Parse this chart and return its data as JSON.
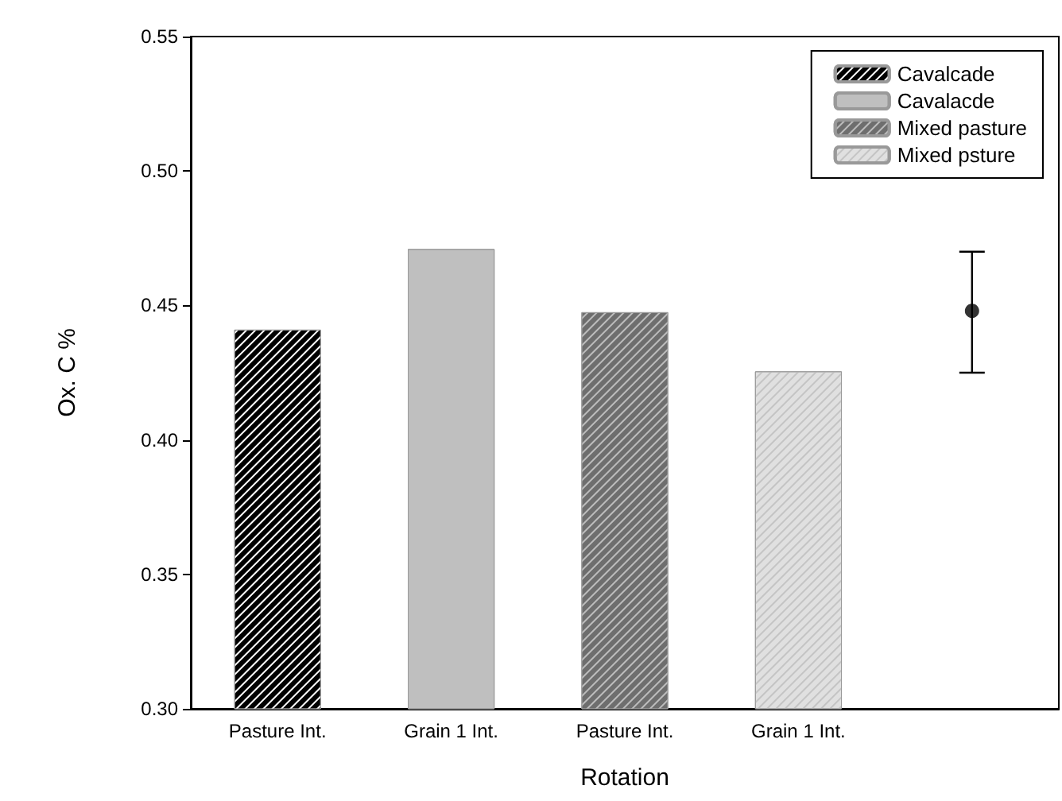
{
  "chart_data": {
    "type": "bar",
    "xlabel": "Rotation",
    "ylabel": "Ox. C %",
    "categories": [
      "Pasture Int.",
      "Grain 1 Int.",
      "Pasture Int.",
      "Grain 1 Int.",
      null
    ],
    "series": [
      {
        "name": "Cavalcade",
        "color": "#000000",
        "values": [
          0.441,
          null,
          null,
          null,
          null
        ]
      },
      {
        "name": "Cavalacde",
        "color": "#bfbfbf",
        "values": [
          null,
          0.471,
          null,
          null,
          null
        ]
      },
      {
        "name": "Mixed pasture",
        "color": "#6e6e6e",
        "values": [
          null,
          null,
          0.4475,
          null,
          null
        ]
      },
      {
        "name": "Mixed psture",
        "color": "#e0e0e0",
        "values": [
          null,
          null,
          null,
          0.4255,
          null
        ]
      },
      {
        "type": "scatter",
        "color": "#000000",
        "values": [
          null,
          null,
          null,
          null,
          0.448
        ],
        "errors": [
          null,
          null,
          null,
          null,
          [
            0.425,
            0.47
          ]
        ]
      }
    ],
    "ylim": [
      0.3,
      0.55
    ],
    "yticks": [
      {
        "value": 0.3,
        "label": "0.30"
      },
      0.35,
      {
        "value": 0.4,
        "label": "0.40"
      },
      0.45,
      {
        "value": 0.5,
        "label": "0.50"
      },
      0.55
    ],
    "legend": "top right",
    "grid": false,
    "marker": "circle"
  }
}
